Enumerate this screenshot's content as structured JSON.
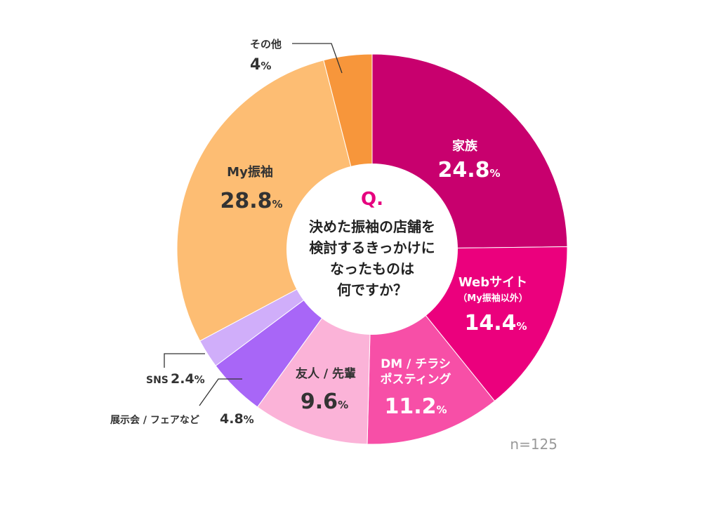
{
  "chart_data": {
    "type": "pie",
    "slices": [
      {
        "label": "家族",
        "sublabel": "",
        "value": 24.8,
        "color": "#c8006e"
      },
      {
        "label": "Webサイト",
        "sublabel": "（My振袖以外）",
        "value": 14.4,
        "color": "#eb007d"
      },
      {
        "label": "DM / チラシ\nポスティング",
        "sublabel": "",
        "value": 11.2,
        "color": "#f74fa7"
      },
      {
        "label": "友人 / 先輩",
        "sublabel": "",
        "value": 9.6,
        "color": "#fbb3d8"
      },
      {
        "label": "展示会 / フェアなど",
        "sublabel": "",
        "value": 4.8,
        "color": "#a866f7"
      },
      {
        "label": "SNS",
        "sublabel": "",
        "value": 2.4,
        "color": "#d0aefa"
      },
      {
        "label": "My振袖",
        "sublabel": "",
        "value": 28.8,
        "color": "#fdbd73"
      },
      {
        "label": "その他",
        "sublabel": "",
        "value": 4.0,
        "color": "#f7963b"
      }
    ],
    "unit": "%",
    "question_mark": "Q.",
    "question": "決めた振袖の店舗を\n検討するきっかけに\nなったものは\n何ですか？",
    "sample": "n=125"
  }
}
